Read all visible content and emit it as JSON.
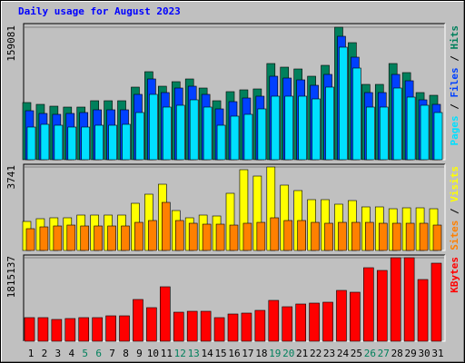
{
  "chart_data": [
    {
      "type": "bar",
      "title": "Daily usage for August 2023",
      "title_color": "#0000ff",
      "ylim": [
        0,
        159081
      ],
      "yticks": [
        159081
      ],
      "legend_separator": " / ",
      "series": [
        {
          "name": "Hits",
          "color": "#00805c",
          "values": [
            68645,
            66466,
            64286,
            63197,
            63197,
            70824,
            70824,
            70824,
            87168,
            105691,
            88258,
            93706,
            96974,
            86078,
            70824,
            81720,
            83899,
            84989,
            115498,
            111139,
            108960,
            100243,
            113318,
            159081,
            140558,
            90437,
            90437,
            115498,
            104602,
            80630,
            77362
          ]
        },
        {
          "name": "Files",
          "color": "#0040ff",
          "values": [
            58838,
            55570,
            54480,
            55570,
            56659,
            59928,
            59928,
            59928,
            78451,
            96974,
            80630,
            86078,
            88258,
            78451,
            61018,
            69734,
            74093,
            76272,
            100243,
            98064,
            95885,
            89347,
            102422,
            148186,
            123125,
            80630,
            80630,
            102422,
            94795,
            71914,
            66466
          ]
        },
        {
          "name": "Pages",
          "color": "#00e0ff",
          "values": [
            39226,
            42494,
            41405,
            39226,
            39226,
            41405,
            41405,
            42494,
            56659,
            78451,
            63197,
            65376,
            71914,
            63197,
            41405,
            52301,
            54480,
            61018,
            76272,
            76272,
            76272,
            73003,
            87168,
            135110,
            110050,
            63197,
            63197,
            86078,
            75182,
            65376,
            56659
          ]
        }
      ]
    },
    {
      "type": "bar",
      "ylim": [
        0,
        3741
      ],
      "yticks": [
        3741
      ],
      "legend_separator": " / ",
      "series": [
        {
          "name": "Visits",
          "color": "#ffff00",
          "values": [
            1301,
            1423,
            1464,
            1464,
            1586,
            1586,
            1586,
            1586,
            2114,
            2521,
            2968,
            1789,
            1464,
            1586,
            1545,
            2562,
            3619,
            3334,
            3741,
            2928,
            2684,
            2277,
            2277,
            2074,
            2236,
            1952,
            1952,
            1870,
            1911,
            1911,
            1870
          ]
        },
        {
          "name": "Sites",
          "color": "#ff8000",
          "values": [
            976,
            1057,
            1098,
            1138,
            1098,
            1098,
            1098,
            1098,
            1260,
            1342,
            2155,
            1342,
            1220,
            1179,
            1179,
            1138,
            1220,
            1260,
            1464,
            1342,
            1342,
            1260,
            1220,
            1260,
            1260,
            1260,
            1220,
            1220,
            1220,
            1220,
            1138
          ]
        }
      ]
    },
    {
      "type": "bar",
      "ylim": [
        0,
        1815137
      ],
      "yticks": [
        1815137
      ],
      "categories": [
        "1",
        "2",
        "3",
        "4",
        "5",
        "6",
        "7",
        "8",
        "9",
        "10",
        "11",
        "12",
        "13",
        "14",
        "15",
        "16",
        "17",
        "18",
        "19",
        "20",
        "21",
        "22",
        "23",
        "24",
        "25",
        "26",
        "27",
        "28",
        "29",
        "30",
        "31"
      ],
      "category_colors": [
        "#000000",
        "#000000",
        "#000000",
        "#000000",
        "#00805c",
        "#00805c",
        "#000000",
        "#000000",
        "#000000",
        "#000000",
        "#000000",
        "#00805c",
        "#00805c",
        "#000000",
        "#000000",
        "#000000",
        "#000000",
        "#000000",
        "#00805c",
        "#00805c",
        "#000000",
        "#000000",
        "#000000",
        "#000000",
        "#000000",
        "#00805c",
        "#00805c",
        "#000000",
        "#000000",
        "#000000",
        "#000000"
      ],
      "series": [
        {
          "name": "KBytes",
          "color": "#ff0000",
          "values": [
            512980,
            512980,
            473520,
            493250,
            512980,
            512980,
            552440,
            552440,
            907580,
            730010,
            1183800,
            631360,
            651090,
            651090,
            512980,
            591900,
            611630,
            670820,
            887850,
            749740,
            808930,
            828660,
            848390,
            1104880,
            1065420,
            1598130,
            1538940,
            1815137,
            1815137,
            1341640,
            1696780
          ]
        }
      ]
    }
  ]
}
